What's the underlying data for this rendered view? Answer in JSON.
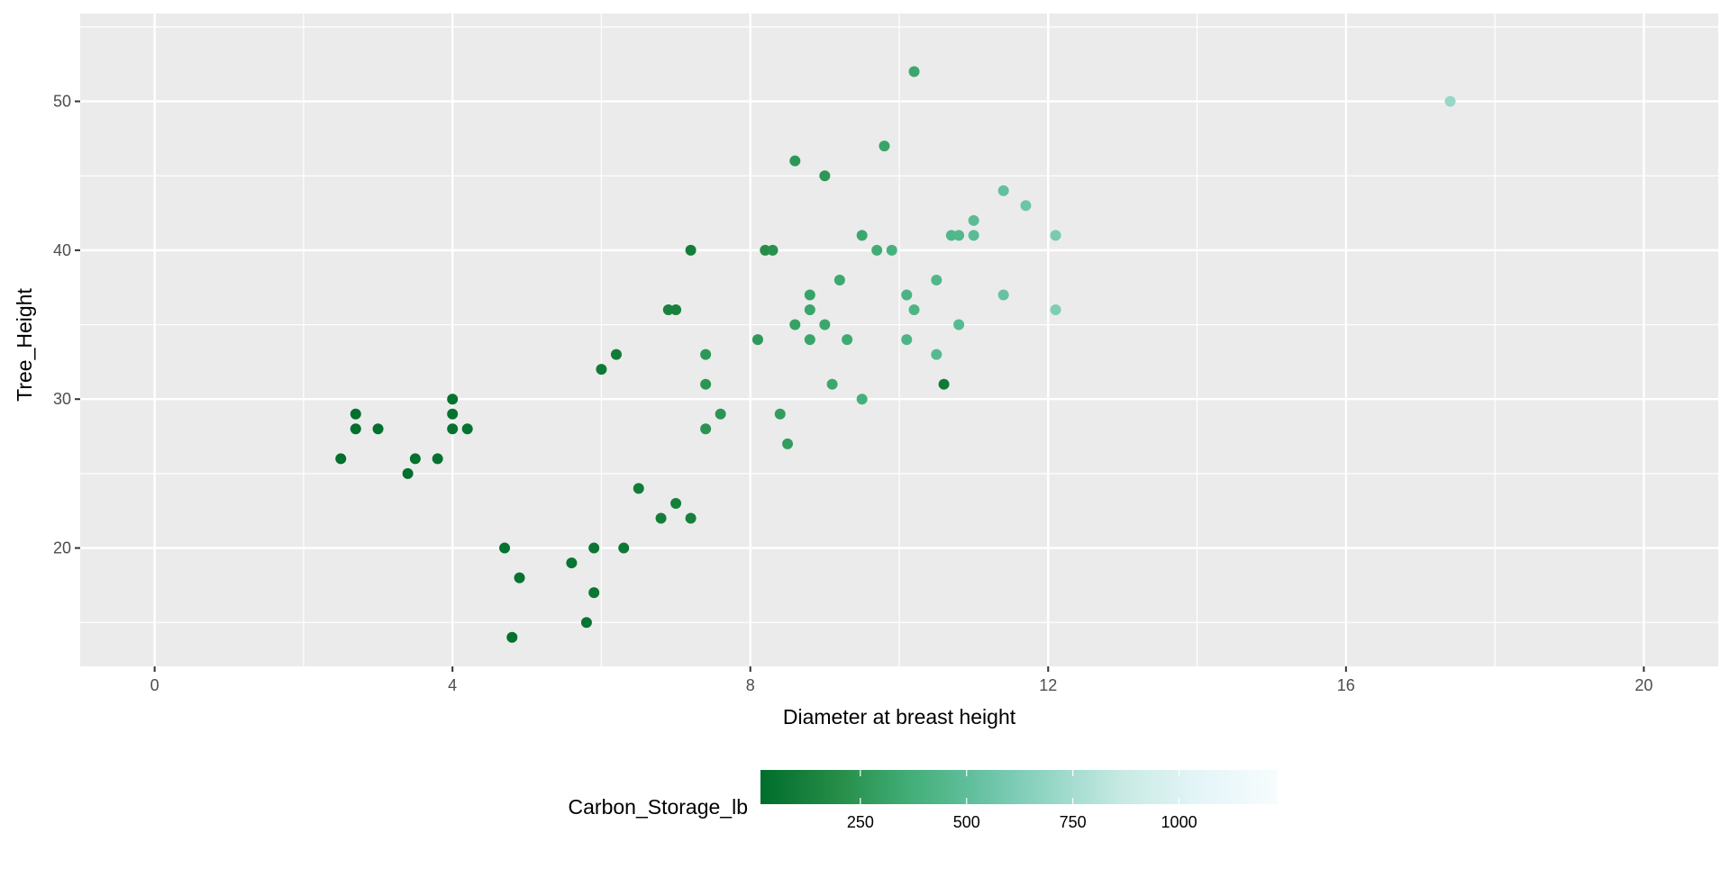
{
  "chart_data": {
    "type": "scatter",
    "xlabel": "Diameter at breast height",
    "ylabel": "Tree_Height",
    "xlim": [
      -1.0,
      21.0
    ],
    "ylim": [
      12.05,
      55.9
    ],
    "x_ticks": [
      0,
      4,
      8,
      12,
      16,
      20
    ],
    "x_tick_labels": [
      "0",
      "4",
      "8",
      "12",
      "16",
      "20"
    ],
    "y_ticks": [
      20,
      30,
      40,
      50
    ],
    "y_tick_labels": [
      "20",
      "30",
      "40",
      "50"
    ],
    "grid": true,
    "legend": {
      "title": "Carbon_Storage_lb",
      "placement": "bottom",
      "type": "colorbar",
      "range": [
        15,
        1232
      ],
      "ticks": [
        250,
        500,
        750,
        1000
      ],
      "tick_labels": [
        "250",
        "500",
        "750",
        "1000"
      ],
      "palette": [
        "#00441b",
        "#006d2c",
        "#238b45",
        "#41ae76",
        "#66c2a4",
        "#99d8c9",
        "#ccece6",
        "#e5f5f9",
        "#f7fcfd"
      ]
    },
    "points": [
      {
        "x": 2.5,
        "y": 26,
        "c": 20
      },
      {
        "x": 2.7,
        "y": 29,
        "c": 25
      },
      {
        "x": 2.7,
        "y": 28,
        "c": 25
      },
      {
        "x": 3.0,
        "y": 28,
        "c": 30
      },
      {
        "x": 3.4,
        "y": 25,
        "c": 30
      },
      {
        "x": 3.5,
        "y": 26,
        "c": 35
      },
      {
        "x": 3.8,
        "y": 26,
        "c": 40
      },
      {
        "x": 4.0,
        "y": 30,
        "c": 45
      },
      {
        "x": 4.0,
        "y": 29,
        "c": 45
      },
      {
        "x": 4.0,
        "y": 28,
        "c": 45
      },
      {
        "x": 4.2,
        "y": 28,
        "c": 50
      },
      {
        "x": 4.7,
        "y": 20,
        "c": 45
      },
      {
        "x": 4.8,
        "y": 14,
        "c": 35
      },
      {
        "x": 4.9,
        "y": 18,
        "c": 45
      },
      {
        "x": 5.6,
        "y": 19,
        "c": 60
      },
      {
        "x": 5.8,
        "y": 15,
        "c": 55
      },
      {
        "x": 5.9,
        "y": 20,
        "c": 70
      },
      {
        "x": 5.9,
        "y": 17,
        "c": 65
      },
      {
        "x": 6.0,
        "y": 32,
        "c": 90
      },
      {
        "x": 6.2,
        "y": 33,
        "c": 100
      },
      {
        "x": 6.3,
        "y": 20,
        "c": 80
      },
      {
        "x": 6.5,
        "y": 24,
        "c": 100
      },
      {
        "x": 6.8,
        "y": 22,
        "c": 110
      },
      {
        "x": 6.9,
        "y": 36,
        "c": 130
      },
      {
        "x": 7.0,
        "y": 36,
        "c": 130
      },
      {
        "x": 7.0,
        "y": 23,
        "c": 120
      },
      {
        "x": 7.2,
        "y": 22,
        "c": 125
      },
      {
        "x": 7.2,
        "y": 40,
        "c": 110
      },
      {
        "x": 7.4,
        "y": 33,
        "c": 250
      },
      {
        "x": 7.4,
        "y": 31,
        "c": 240
      },
      {
        "x": 7.4,
        "y": 28,
        "c": 230
      },
      {
        "x": 7.6,
        "y": 29,
        "c": 240
      },
      {
        "x": 8.1,
        "y": 34,
        "c": 260
      },
      {
        "x": 8.2,
        "y": 40,
        "c": 200
      },
      {
        "x": 8.3,
        "y": 40,
        "c": 220
      },
      {
        "x": 8.4,
        "y": 29,
        "c": 280
      },
      {
        "x": 8.5,
        "y": 27,
        "c": 280
      },
      {
        "x": 8.6,
        "y": 46,
        "c": 250
      },
      {
        "x": 8.6,
        "y": 35,
        "c": 300
      },
      {
        "x": 8.8,
        "y": 37,
        "c": 310
      },
      {
        "x": 8.8,
        "y": 36,
        "c": 320
      },
      {
        "x": 8.8,
        "y": 34,
        "c": 320
      },
      {
        "x": 9.0,
        "y": 45,
        "c": 250
      },
      {
        "x": 9.0,
        "y": 35,
        "c": 330
      },
      {
        "x": 9.1,
        "y": 31,
        "c": 330
      },
      {
        "x": 9.2,
        "y": 38,
        "c": 340
      },
      {
        "x": 9.3,
        "y": 34,
        "c": 350
      },
      {
        "x": 9.5,
        "y": 41,
        "c": 330
      },
      {
        "x": 9.5,
        "y": 30,
        "c": 380
      },
      {
        "x": 9.7,
        "y": 40,
        "c": 360
      },
      {
        "x": 9.8,
        "y": 47,
        "c": 320
      },
      {
        "x": 9.9,
        "y": 40,
        "c": 390
      },
      {
        "x": 10.1,
        "y": 37,
        "c": 410
      },
      {
        "x": 10.1,
        "y": 34,
        "c": 420
      },
      {
        "x": 10.2,
        "y": 52,
        "c": 330
      },
      {
        "x": 10.2,
        "y": 36,
        "c": 420
      },
      {
        "x": 10.5,
        "y": 38,
        "c": 440
      },
      {
        "x": 10.5,
        "y": 33,
        "c": 460
      },
      {
        "x": 10.6,
        "y": 31,
        "c": 90
      },
      {
        "x": 10.7,
        "y": 41,
        "c": 440
      },
      {
        "x": 10.8,
        "y": 41,
        "c": 450
      },
      {
        "x": 10.8,
        "y": 35,
        "c": 470
      },
      {
        "x": 11.0,
        "y": 42,
        "c": 480
      },
      {
        "x": 11.0,
        "y": 41,
        "c": 480
      },
      {
        "x": 11.4,
        "y": 44,
        "c": 520
      },
      {
        "x": 11.4,
        "y": 37,
        "c": 540
      },
      {
        "x": 11.7,
        "y": 43,
        "c": 560
      },
      {
        "x": 12.1,
        "y": 41,
        "c": 600
      },
      {
        "x": 12.1,
        "y": 36,
        "c": 620
      },
      {
        "x": 17.4,
        "y": 50,
        "c": 700
      }
    ]
  }
}
